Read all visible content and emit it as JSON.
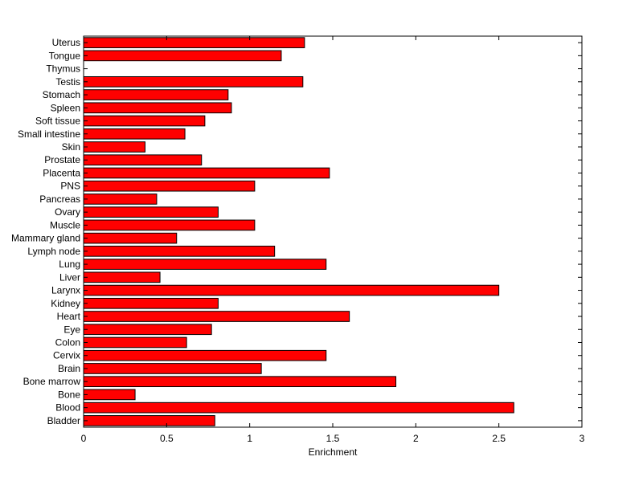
{
  "chart_data": {
    "type": "bar",
    "orientation": "horizontal",
    "title": "",
    "xlabel": "Enrichment",
    "ylabel": "",
    "xlim": [
      0,
      3
    ],
    "xticks": [
      0,
      0.5,
      1,
      1.5,
      2,
      2.5,
      3
    ],
    "xtick_labels": [
      "0",
      "0.5",
      "1",
      "1.5",
      "2",
      "2.5",
      "3"
    ],
    "grid": false,
    "bar_color": "#ff0000",
    "bar_edge_color": "#000000",
    "categories": [
      "Bladder",
      "Blood",
      "Bone",
      "Bone marrow",
      "Brain",
      "Cervix",
      "Colon",
      "Eye",
      "Heart",
      "Kidney",
      "Larynx",
      "Liver",
      "Lung",
      "Lymph node",
      "Mammary gland",
      "Muscle",
      "Ovary",
      "Pancreas",
      "PNS",
      "Placenta",
      "Prostate",
      "Skin",
      "Small intestine",
      "Soft tissue",
      "Spleen",
      "Stomach",
      "Testis",
      "Thymus",
      "Tongue",
      "Uterus"
    ],
    "values": [
      0.79,
      2.59,
      0.31,
      1.88,
      1.07,
      1.46,
      0.62,
      0.77,
      1.6,
      0.81,
      2.5,
      0.46,
      1.46,
      1.15,
      0.56,
      1.03,
      0.81,
      0.44,
      1.03,
      1.48,
      0.71,
      0.37,
      0.61,
      0.73,
      0.89,
      0.87,
      1.32,
      0.0,
      1.19,
      1.33
    ]
  }
}
